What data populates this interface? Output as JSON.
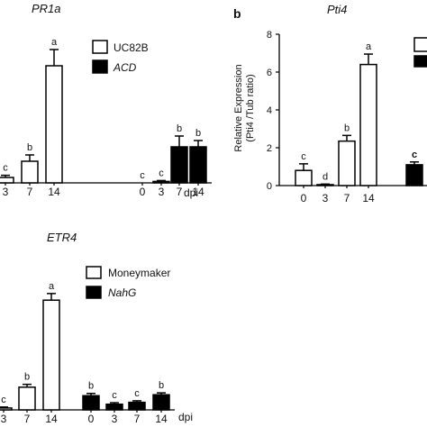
{
  "chart_data": [
    {
      "id": "pr1a",
      "type": "bar",
      "title": "PR1a",
      "xlabel": "dpi",
      "legend": [
        "UC82B",
        "ACD"
      ],
      "legend_italic": [
        false,
        true
      ],
      "groups": [
        {
          "name": "UC82B",
          "fill": "#ffffff",
          "x": [
            "3",
            "7",
            "14"
          ],
          "values": [
            0.3,
            1.2,
            6.5
          ],
          "errors": [
            0.12,
            0.35,
            0.9
          ],
          "letters": [
            "c",
            "b",
            "a"
          ]
        },
        {
          "name": "ACD",
          "fill": "#000000",
          "x": [
            "0",
            "3",
            "7",
            "14"
          ],
          "values": [
            0.0,
            0.08,
            2.0,
            2.0
          ],
          "errors": [
            0.0,
            0.05,
            0.6,
            0.35
          ],
          "letters": [
            "c",
            "c",
            "b",
            "b"
          ]
        }
      ]
    },
    {
      "id": "pti4",
      "type": "bar",
      "panel_label": "b",
      "title": "Pti4",
      "xlabel": "",
      "ylabel": "Relative Expression",
      "ylabel2": "(Pti4 /Tub ratio)",
      "ylim": [
        0,
        8
      ],
      "yticks": [
        "0",
        "2",
        "4",
        "6",
        "8"
      ],
      "groups": [
        {
          "name": "",
          "fill": "#ffffff",
          "x": [
            "0",
            "3",
            "7",
            "14"
          ],
          "values": [
            0.8,
            0.05,
            2.35,
            6.4
          ],
          "errors": [
            0.35,
            0.03,
            0.3,
            0.55
          ],
          "letters": [
            "c",
            "d",
            "b",
            "a"
          ]
        },
        {
          "name": "",
          "fill": "#000000",
          "x": [
            ""
          ],
          "values": [
            1.1
          ],
          "errors": [
            0.15
          ],
          "letters": [
            "c"
          ]
        }
      ]
    },
    {
      "id": "etr4",
      "type": "bar",
      "title": "ETR4",
      "xlabel": "dpi",
      "legend": [
        "Moneymaker",
        "NahG"
      ],
      "legend_italic": [
        false,
        true
      ],
      "groups": [
        {
          "name": "Moneymaker",
          "fill": "#ffffff",
          "x": [
            "3",
            "7",
            "14"
          ],
          "values": [
            0.1,
            1.2,
            5.8
          ],
          "errors": [
            0.05,
            0.15,
            0.35
          ],
          "letters": [
            "c",
            "b",
            "a"
          ]
        },
        {
          "name": "NahG",
          "fill": "#000000",
          "x": [
            "0",
            "3",
            "7",
            "14"
          ],
          "values": [
            0.75,
            0.3,
            0.4,
            0.8
          ],
          "errors": [
            0.12,
            0.08,
            0.08,
            0.1
          ],
          "letters": [
            "b",
            "c",
            "c",
            "b"
          ]
        }
      ]
    }
  ]
}
